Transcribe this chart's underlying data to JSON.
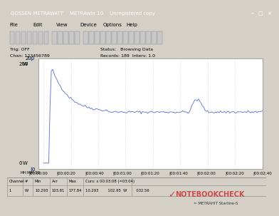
{
  "title": "GOSSEN METRAWATT    METRAwin 10    Unregistered copy",
  "bg_color": "#d4d0c8",
  "plot_bg": "#ffffff",
  "line_color": "#6677cc",
  "y_max": 200,
  "y_min": 0,
  "y_label_top": "W",
  "y_label_bot": "W",
  "x_tick_labels": [
    "|00:00:00",
    "|00:00:20",
    "|00:00:40",
    "|00:01:00",
    "|00:01:20",
    "|00:01:40",
    "|00:02:00",
    "|00:02:20",
    "|00:02:40"
  ],
  "hhmm_label": "HH:MM:SS",
  "peak_value": 178,
  "stable_value": 103,
  "min_val": "10.293",
  "avg_val": "103.81",
  "max_val": "177.84",
  "grid_color": "#ccccdd",
  "grid_style": "dotted",
  "tag_text": "Trig: OFF",
  "chan_text": "Chan: 123456789",
  "status_text": "Status:   Browsing Data",
  "records_text": "Records: 189  Interv: 1.0",
  "table_headers": [
    "Channel",
    "#",
    "Min",
    "Avr",
    "Max",
    "Curs: x 00:03:08 (=03:04)"
  ],
  "table_row": [
    "1",
    "W",
    "10.293",
    "103.81",
    "177.84",
    "10.293        102.95  W        032.56"
  ],
  "notebookcheck_text": "NOTEBOOKCHECK",
  "metrahit_text": "= METRAHIT Starline-S",
  "titlebar_color": "#0a5ca8",
  "win_border": "#808080"
}
